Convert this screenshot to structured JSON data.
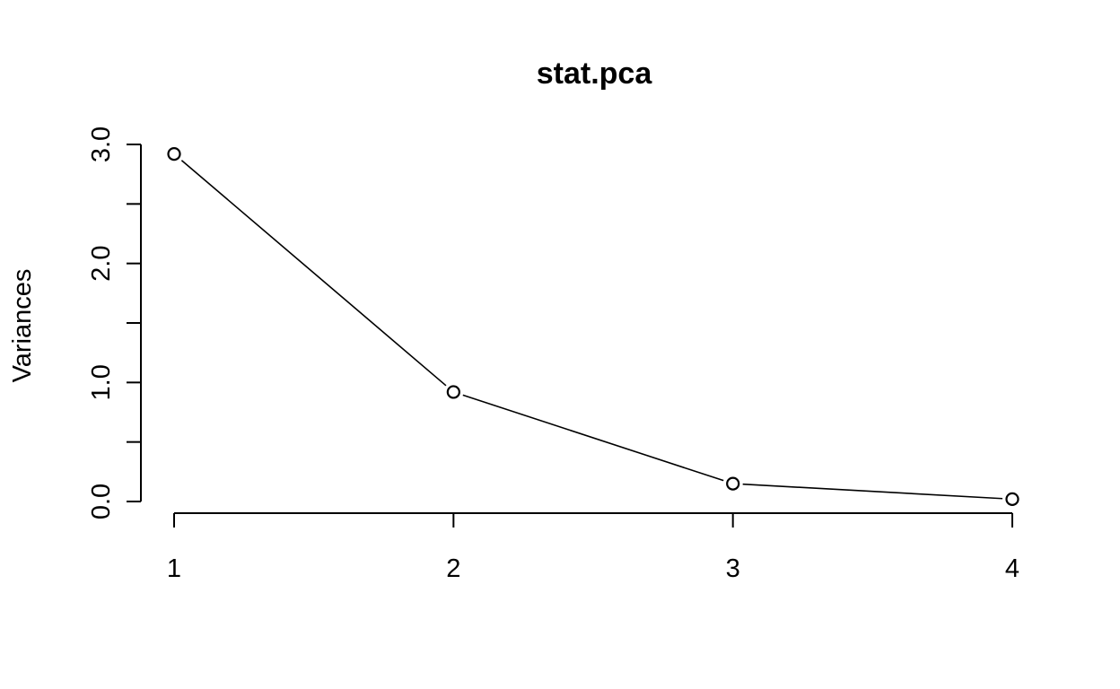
{
  "chart_data": {
    "type": "line",
    "title": "stat.pca",
    "ylabel": "Variances",
    "xlabel": "",
    "x": [
      1,
      2,
      3,
      4
    ],
    "values": [
      2.92,
      0.92,
      0.15,
      0.02
    ],
    "xticks": [
      1,
      2,
      3,
      4
    ],
    "xtick_labels": [
      "1",
      "2",
      "3",
      "4"
    ],
    "yticks": [
      0.0,
      0.5,
      1.0,
      1.5,
      2.0,
      2.5,
      3.0
    ],
    "ytick_labels": [
      "0.0",
      "",
      "1.0",
      "",
      "2.0",
      "",
      "3.0"
    ],
    "ylim": [
      0,
      3.0
    ],
    "grid": false,
    "legend": "none",
    "colors": {
      "line": "#000000",
      "marker_fill": "#ffffff",
      "marker_stroke": "#000000"
    }
  }
}
